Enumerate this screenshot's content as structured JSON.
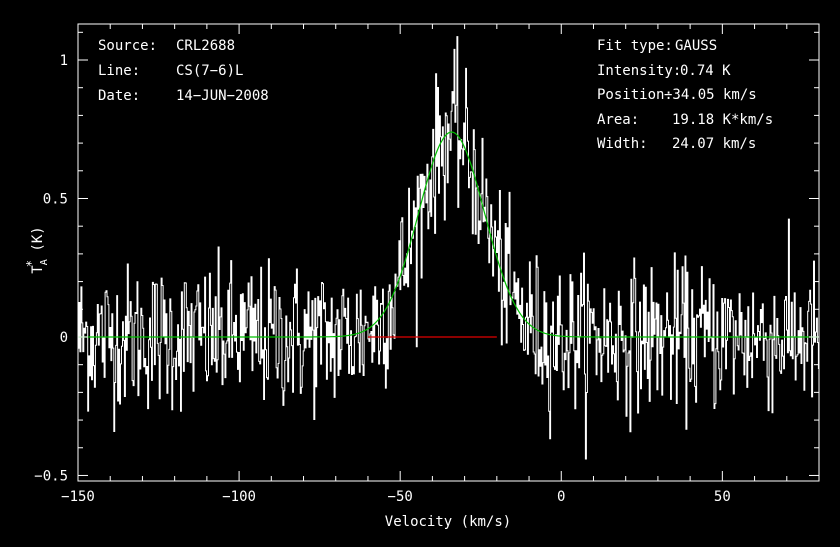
{
  "chart_data": {
    "type": "line",
    "xlabel": "Velocity (km/s)",
    "ylabel": "T*A (K)",
    "xlim": [
      -150,
      80
    ],
    "ylim": [
      -0.52,
      1.13
    ],
    "x_ticks": [
      "-150",
      "-100",
      "-50",
      "0",
      "50"
    ],
    "y_ticks": [
      "1",
      "0.5",
      "0",
      "-0.5"
    ],
    "x_tick_values": [
      -150,
      -100,
      -50,
      0,
      50
    ],
    "y_tick_values": [
      1,
      0.5,
      0,
      -0.5
    ],
    "info_left": [
      {
        "label": "Source:",
        "value": "CRL2688"
      },
      {
        "label": "Line:",
        "value": "CS(7−6)L"
      },
      {
        "label": "Date:",
        "value": "14−JUN−2008"
      }
    ],
    "info_right": [
      {
        "label": "Fit type:",
        "value": "GAUSS"
      },
      {
        "label": "Intensity:",
        "value": "0.74 K"
      },
      {
        "label": "Position:",
        "value": "−34.05 km/s"
      },
      {
        "label": "Area:",
        "value": "19.18 K*km/s"
      },
      {
        "label": "Width:",
        "value": "24.07 km/s"
      }
    ],
    "fit": {
      "model": "gaussian",
      "amplitude_K": 0.74,
      "center_kms": -34.05,
      "fwhm_kms": 24.07,
      "color": "#00c000"
    },
    "baseline": {
      "value": 0,
      "x_from": -60,
      "x_to": -20,
      "color": "#e00000"
    },
    "spectrum_color": "#ffffff",
    "noise_rms_K": 0.13,
    "grid": false
  }
}
